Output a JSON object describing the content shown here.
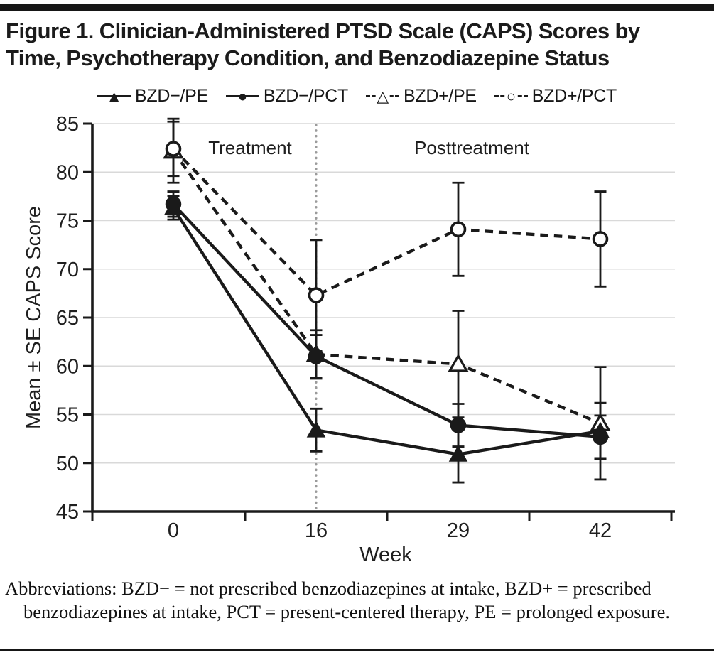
{
  "figure": {
    "title": "Figure 1. Clinician-Administered PTSD Scale (CAPS) Scores by Time, Psychotherapy Condition, and Benzodiazepine Status",
    "footnote": "Abbreviations: BZD− = not prescribed benzodiazepines at intake, BZD+ = prescribed benzodiazepines at intake, PCT = present-centered therapy, PE = prolonged exposure."
  },
  "chart_data": {
    "type": "line",
    "x": [
      0,
      16,
      29,
      42
    ],
    "xlabel": "Week",
    "ylabel": "Mean ± SE CAPS Score",
    "ylim": [
      45,
      85
    ],
    "yticks": [
      45,
      50,
      55,
      60,
      65,
      70,
      75,
      80,
      85
    ],
    "grid": true,
    "legend_position": "top",
    "phase_divider_at_week": 16,
    "phase_labels": [
      "Treatment",
      "Posttreatment"
    ],
    "error_bars": "± SE",
    "series": [
      {
        "name": "BZD−/PE",
        "line": "solid",
        "marker": "filled-triangle",
        "values": [
          76.3,
          53.4,
          50.9,
          53.3
        ],
        "se": [
          1.2,
          2.2,
          2.9,
          2.9
        ]
      },
      {
        "name": "BZD−/PCT",
        "line": "solid",
        "marker": "filled-circle",
        "values": [
          76.7,
          61.0,
          53.9,
          52.7
        ],
        "se": [
          1.3,
          2.2,
          2.2,
          2.2
        ]
      },
      {
        "name": "BZD+/PE",
        "line": "dashed",
        "marker": "open-triangle",
        "values": [
          82.2,
          61.2,
          60.2,
          54.1
        ],
        "se": [
          3.3,
          2.5,
          5.5,
          5.8
        ]
      },
      {
        "name": "BZD+/PCT",
        "line": "dashed",
        "marker": "open-circle",
        "values": [
          82.4,
          67.3,
          74.1,
          73.1
        ],
        "se": [
          2.8,
          5.7,
          4.8,
          4.9
        ]
      }
    ]
  },
  "colors": {
    "ink": "#1a1a1a",
    "grid": "#d9d9d9",
    "divider": "#9b9b9b",
    "background": "#ffffff"
  }
}
